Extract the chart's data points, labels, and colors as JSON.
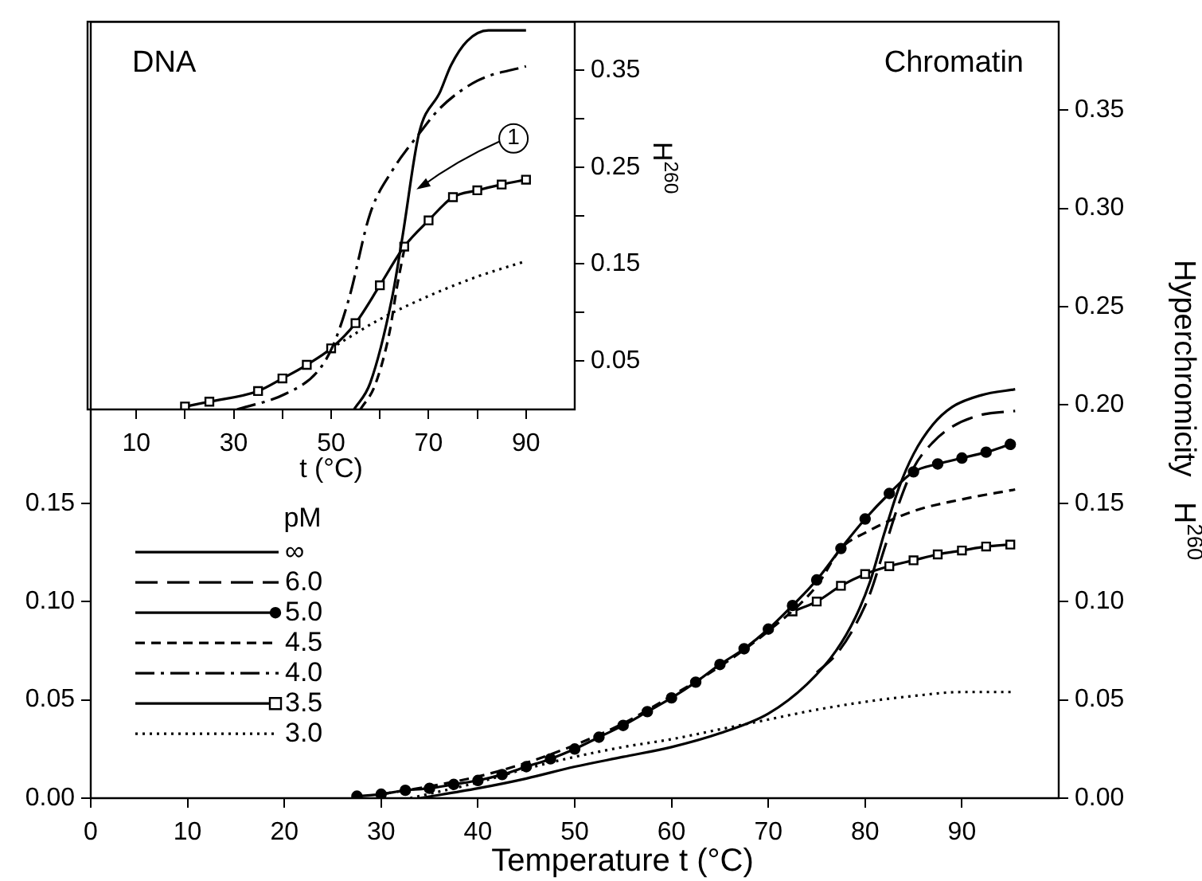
{
  "chart_data": [
    {
      "type": "line",
      "title": "Chromatin",
      "xlabel": "Temperature t (°C)",
      "y2label": "Hyperchromicity   H$^{260}$",
      "legend_title": "pM",
      "legend": "left",
      "xlim": [
        0,
        100
      ],
      "xticks": [
        0,
        10,
        20,
        30,
        40,
        50,
        60,
        70,
        80,
        90
      ],
      "ylim": [
        0,
        0.395
      ],
      "yticks": [
        {
          "value": 0,
          "label": "0.00"
        },
        {
          "value": 0.05,
          "label": "0.05"
        },
        {
          "value": 0.1,
          "label": "0.10"
        },
        {
          "value": 0.15,
          "label": "0.15"
        }
      ],
      "y2lim": [
        0,
        0.395
      ],
      "y2ticks": [
        {
          "value": 0,
          "label": "0.00"
        },
        {
          "value": 0.05,
          "label": "0.05"
        },
        {
          "value": 0.1,
          "label": "0.10"
        },
        {
          "value": 0.15,
          "label": "0.15"
        },
        {
          "value": 0.2,
          "label": "0.20"
        },
        {
          "value": 0.25,
          "label": "0.25"
        },
        {
          "value": 0.3,
          "label": "0.30"
        },
        {
          "value": 0.35,
          "label": "0.35"
        }
      ],
      "series": [
        {
          "name": "∞",
          "color": "#000000",
          "line_style": "solid",
          "marker": "none",
          "x": [
            34,
            40,
            45,
            50,
            55,
            60,
            65,
            70,
            74,
            77,
            79,
            80.5,
            82,
            83.5,
            85,
            87,
            89,
            92,
            95.5
          ],
          "values": [
            0,
            0.005,
            0.01,
            0.016,
            0.021,
            0.026,
            0.033,
            0.043,
            0.058,
            0.075,
            0.092,
            0.11,
            0.135,
            0.158,
            0.175,
            0.19,
            0.199,
            0.205,
            0.208
          ]
        },
        {
          "name": "6.0",
          "color": "#000000",
          "line_style": "longdash",
          "marker": "none",
          "x": [
            75,
            77,
            79,
            80.5,
            82,
            83.5,
            85,
            87,
            89,
            92,
            95.5
          ],
          "values": [
            0.064,
            0.073,
            0.088,
            0.104,
            0.127,
            0.15,
            0.168,
            0.181,
            0.189,
            0.195,
            0.197
          ]
        },
        {
          "name": "5.0",
          "color": "#000000",
          "line_style": "solid",
          "marker": "circle",
          "x": [
            27.5,
            30,
            32.5,
            35,
            37.5,
            40,
            42.5,
            45,
            47.5,
            50,
            52.5,
            55,
            57.5,
            60,
            62.5,
            65,
            67.5,
            70,
            72.5,
            75,
            77.5,
            80,
            82.5,
            85,
            87.5,
            90,
            92.5,
            95
          ],
          "values": [
            0.001,
            0.002,
            0.004,
            0.005,
            0.007,
            0.009,
            0.012,
            0.016,
            0.02,
            0.025,
            0.031,
            0.037,
            0.044,
            0.051,
            0.059,
            0.068,
            0.076,
            0.086,
            0.098,
            0.111,
            0.127,
            0.142,
            0.155,
            0.166,
            0.17,
            0.173,
            0.176,
            0.18
          ]
        },
        {
          "name": "4.5",
          "color": "#000000",
          "line_style": "dashed",
          "marker": "none",
          "x": [
            30,
            35,
            40,
            45,
            50,
            55,
            60,
            65,
            70,
            75,
            77.5,
            80,
            85,
            90,
            95.5
          ],
          "values": [
            0.002,
            0.006,
            0.011,
            0.018,
            0.027,
            0.038,
            0.052,
            0.067,
            0.085,
            0.108,
            0.127,
            0.135,
            0.146,
            0.152,
            0.157
          ]
        },
        {
          "name": "4.0",
          "color": "#000000",
          "line_style": "dashdot",
          "marker": "none"
        },
        {
          "name": "3.5",
          "color": "#000000",
          "line_style": "solid",
          "marker": "square",
          "x": [
            72.5,
            75,
            77.5,
            80,
            82.5,
            85,
            87.5,
            90,
            92.5,
            95
          ],
          "values": [
            0.095,
            0.1,
            0.108,
            0.114,
            0.118,
            0.121,
            0.124,
            0.126,
            0.128,
            0.129
          ]
        },
        {
          "name": "3.0",
          "color": "#000000",
          "line_style": "dotted",
          "marker": "none",
          "x": [
            33,
            40,
            45,
            50,
            55,
            60,
            65,
            70,
            75,
            80,
            85,
            90,
            95.5
          ],
          "values": [
            0,
            0.008,
            0.015,
            0.021,
            0.026,
            0.03,
            0.035,
            0.04,
            0.045,
            0.049,
            0.052,
            0.054,
            0.054
          ]
        }
      ]
    },
    {
      "type": "line",
      "title": "DNA",
      "xlabel": "t (°C)",
      "ylabel": "H$^{260}$",
      "xlim": [
        0,
        100
      ],
      "xticks": [
        10,
        {
          "value": 20,
          "label": null
        },
        30,
        {
          "value": 40,
          "label": null
        },
        50,
        {
          "value": 60,
          "label": null
        },
        70,
        {
          "value": 80,
          "label": null
        },
        90
      ],
      "ylim": [
        0,
        0.4
      ],
      "yticks": [
        {
          "value": 0.05,
          "label": "0.05"
        },
        {
          "value": 0.1,
          "label": null
        },
        {
          "value": 0.15,
          "label": "0.15"
        },
        {
          "value": 0.2,
          "label": null
        },
        {
          "value": 0.25,
          "label": "0.25"
        },
        {
          "value": 0.3,
          "label": null
        },
        {
          "value": 0.35,
          "label": "0.35"
        }
      ],
      "annotations": [
        {
          "text": "1",
          "x": 67.5,
          "y": 0.227
        }
      ],
      "series": [
        {
          "color": "#000000",
          "line_style": "solid",
          "marker": "none",
          "x": [
            54.7,
            58,
            62.5,
            64.7,
            68,
            72.4,
            74.6,
            77.9,
            82.3,
            90
          ],
          "values": [
            0,
            0.027,
            0.115,
            0.18,
            0.284,
            0.328,
            0.355,
            0.38,
            0.391,
            0.391
          ]
        },
        {
          "color": "#000000",
          "line_style": "dashdot",
          "marker": "none",
          "x": [
            30.7,
            40.6,
            47.2,
            50.4,
            53.7,
            58,
            62.5,
            68,
            72.4,
            80,
            90
          ],
          "values": [
            0,
            0.016,
            0.039,
            0.066,
            0.115,
            0.202,
            0.246,
            0.284,
            0.311,
            0.339,
            0.354
          ]
        },
        {
          "color": "#000000",
          "line_style": "solid",
          "marker": "square",
          "x": [
            20,
            25,
            35,
            40,
            45,
            50,
            55,
            60,
            65,
            70,
            75,
            80,
            85,
            90
          ],
          "values": [
            0.003,
            0.008,
            0.019,
            0.032,
            0.046,
            0.063,
            0.089,
            0.128,
            0.168,
            0.195,
            0.219,
            0.226,
            0.232,
            0.237
          ]
        },
        {
          "color": "#000000",
          "line_style": "dotted",
          "marker": "none",
          "x": [
            50,
            60,
            70,
            80,
            90
          ],
          "values": [
            0.063,
            0.093,
            0.117,
            0.137,
            0.153
          ]
        },
        {
          "color": "#000000",
          "line_style": "dashed",
          "marker": "none",
          "x": [
            56,
            59,
            62,
            63.5,
            65
          ],
          "values": [
            0,
            0.025,
            0.08,
            0.126,
            0.165
          ]
        }
      ]
    }
  ]
}
